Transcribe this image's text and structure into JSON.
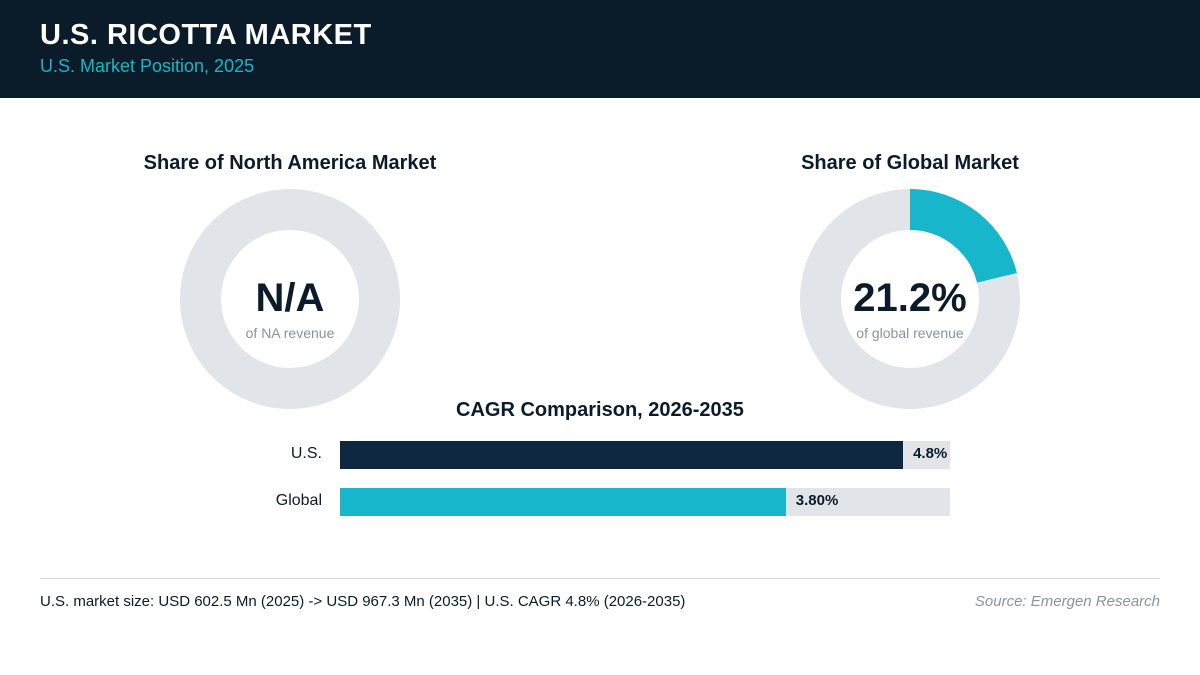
{
  "header": {
    "title": "U.S. RICOTTA MARKET",
    "subtitle": "U.S. Market Position, 2025"
  },
  "colors": {
    "header_bg": "#0a1b2a",
    "accent_teal": "#17b6ca",
    "navy": "#0e2840",
    "track_gray": "#e1e5e9"
  },
  "chart_data": [
    {
      "type": "pie",
      "title": "Share of North America Market",
      "center_value": "N/A",
      "center_caption": "of NA revenue",
      "share": null
    },
    {
      "type": "pie",
      "title": "Share of Global Market",
      "center_value": "21.2%",
      "center_caption": "of global revenue",
      "share": 21.2
    },
    {
      "type": "bar",
      "orientation": "horizontal",
      "title": "CAGR Comparison, 2026-2035",
      "categories": [
        "U.S.",
        "Global"
      ],
      "values": [
        4.8,
        3.8
      ],
      "value_labels": [
        "4.8%",
        "3.80%"
      ],
      "xlim": [
        0,
        5.2
      ],
      "bar_colors": [
        "#0e2840",
        "#17b6ca"
      ]
    }
  ],
  "footer": {
    "note": "U.S. market size: USD 602.5 Mn (2025) -> USD 967.3 Mn (2035)  |  U.S. CAGR 4.8% (2026-2035)",
    "source": "Source: Emergen Research"
  }
}
